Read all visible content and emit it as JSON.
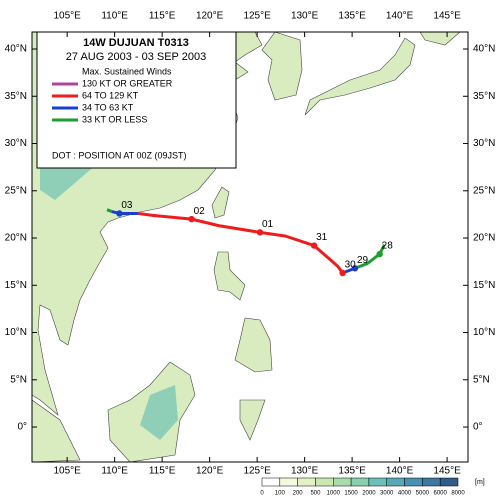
{
  "title": "14W  DUJUAN  T0313",
  "subtitle": "27 AUG 2003 - 03 SEP 2003",
  "legend": {
    "heading": "Max. Sustained Winds",
    "items": [
      {
        "label": "130 KT OR GREATER",
        "color": "#b0449a"
      },
      {
        "label": "64 TO 129 KT",
        "color": "#ee1c1c"
      },
      {
        "label": "34 TO 63 KT",
        "color": "#1a3fd0"
      },
      {
        "label": "33 KT OR LESS",
        "color": "#1e9e2e"
      }
    ],
    "note": "DOT : POSITION AT 00Z (09JST)"
  },
  "map": {
    "xlim": [
      101.3,
      147.2
    ],
    "ylim": [
      -3.7,
      41.8
    ],
    "xticks": [
      {
        "value": 105,
        "label": "105°E"
      },
      {
        "value": 110,
        "label": "110°E"
      },
      {
        "value": 115,
        "label": "115°E"
      },
      {
        "value": 120,
        "label": "120°E"
      },
      {
        "value": 125,
        "label": "125°E"
      },
      {
        "value": 130,
        "label": "130°E"
      },
      {
        "value": 135,
        "label": "135°E"
      },
      {
        "value": 140,
        "label": "140°E"
      },
      {
        "value": 145,
        "label": "145°E"
      }
    ],
    "yticks": [
      {
        "value": 0,
        "label": "0°"
      },
      {
        "value": 5,
        "label": "5°N"
      },
      {
        "value": 10,
        "label": "10°N"
      },
      {
        "value": 15,
        "label": "15°N"
      },
      {
        "value": 20,
        "label": "20°N"
      },
      {
        "value": 25,
        "label": "25°N"
      },
      {
        "value": 30,
        "label": "30°N"
      },
      {
        "value": 35,
        "label": "35°N"
      },
      {
        "value": 40,
        "label": "40°N"
      }
    ]
  },
  "track": {
    "segments": [
      {
        "color": "#1e9e2e",
        "lon": [
          138.4,
          137.9,
          136.6,
          135.3
        ],
        "lat": [
          19.3,
          18.3,
          17.3,
          16.8
        ]
      },
      {
        "color": "#1a3fd0",
        "lon": [
          135.3,
          134.5,
          134.0
        ],
        "lat": [
          16.8,
          16.5,
          16.3
        ]
      },
      {
        "color": "#ee1c1c",
        "lon": [
          134.0,
          133.5,
          131.0,
          128.0,
          125.3,
          121.0,
          118.1,
          114.0,
          112.5
        ],
        "lat": [
          16.3,
          17.0,
          19.2,
          20.2,
          20.6,
          21.3,
          22.0,
          22.4,
          22.6
        ]
      },
      {
        "color": "#1a3fd0",
        "lon": [
          112.5,
          110.5,
          109.7
        ],
        "lat": [
          22.6,
          22.6,
          22.8
        ]
      },
      {
        "color": "#1e9e2e",
        "lon": [
          109.7,
          109.2
        ],
        "lat": [
          22.8,
          23.0
        ]
      }
    ],
    "positions": [
      {
        "label": "28",
        "lon": 137.9,
        "lat": 18.3,
        "color": "#1e9e2e"
      },
      {
        "label": "29",
        "lon": 135.3,
        "lat": 16.8,
        "color": "#1a3fd0"
      },
      {
        "label": "30",
        "lon": 134.0,
        "lat": 16.3,
        "color": "#ee1c1c"
      },
      {
        "label": "31",
        "lon": 131.0,
        "lat": 19.2,
        "color": "#ee1c1c"
      },
      {
        "label": "01",
        "lon": 125.3,
        "lat": 20.6,
        "color": "#ee1c1c"
      },
      {
        "label": "02",
        "lon": 118.1,
        "lat": 22.0,
        "color": "#ee1c1c"
      },
      {
        "label": "03",
        "lon": 110.5,
        "lat": 22.6,
        "color": "#1a3fd0"
      }
    ]
  },
  "colorbar": {
    "labels": [
      "0",
      "100",
      "200",
      "500",
      "1000",
      "1500",
      "2000",
      "3000",
      "4000",
      "5000",
      "6000",
      "8000"
    ],
    "colors": [
      "#ffffff",
      "#f4fae0",
      "#e2f2c4",
      "#c8e8b0",
      "#a8dca8",
      "#88cfb0",
      "#6cc0b8",
      "#58a8b8",
      "#4890b0",
      "#3c78a0",
      "#305c88"
    ],
    "unit": "[m]"
  }
}
